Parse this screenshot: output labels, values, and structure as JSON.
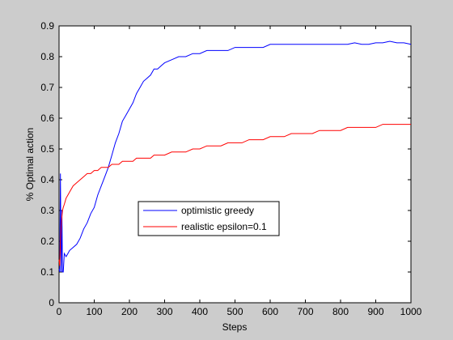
{
  "chart_data": {
    "type": "line",
    "title": "",
    "xlabel": "Steps",
    "ylabel": "% Optimal action",
    "xlim": [
      0,
      1000
    ],
    "ylim": [
      0,
      0.9
    ],
    "x_ticks": [
      0,
      100,
      200,
      300,
      400,
      500,
      600,
      700,
      800,
      900,
      1000
    ],
    "x_tick_labels": [
      "0",
      "100",
      "200",
      "300",
      "400",
      "500",
      "600",
      "700",
      "800",
      "900",
      "1000"
    ],
    "y_ticks": [
      0,
      0.1,
      0.2,
      0.3,
      0.4,
      0.5,
      0.6,
      0.7,
      0.8,
      0.9
    ],
    "y_tick_labels": [
      "0",
      "0.1",
      "0.2",
      "0.3",
      "0.4",
      "0.5",
      "0.6",
      "0.7",
      "0.8",
      "0.9"
    ],
    "grid": false,
    "legend_placement": "center-left",
    "series": [
      {
        "name": "optimistic greedy",
        "color": "#0000ff",
        "x": [
          0,
          2,
          4,
          6,
          8,
          10,
          12,
          15,
          20,
          25,
          30,
          40,
          50,
          60,
          70,
          80,
          90,
          100,
          110,
          120,
          130,
          140,
          150,
          160,
          170,
          180,
          190,
          200,
          210,
          220,
          230,
          240,
          250,
          260,
          270,
          280,
          290,
          300,
          320,
          340,
          360,
          380,
          400,
          420,
          440,
          460,
          480,
          500,
          520,
          540,
          560,
          580,
          600,
          620,
          640,
          660,
          680,
          700,
          720,
          740,
          760,
          780,
          800,
          820,
          840,
          860,
          880,
          900,
          920,
          940,
          960,
          980,
          1000
        ],
        "y": [
          0.11,
          0.1,
          0.42,
          0.1,
          0.3,
          0.1,
          0.1,
          0.16,
          0.15,
          0.16,
          0.17,
          0.18,
          0.19,
          0.21,
          0.24,
          0.26,
          0.29,
          0.31,
          0.35,
          0.38,
          0.41,
          0.44,
          0.48,
          0.52,
          0.55,
          0.59,
          0.61,
          0.63,
          0.65,
          0.68,
          0.7,
          0.72,
          0.73,
          0.74,
          0.76,
          0.76,
          0.77,
          0.78,
          0.79,
          0.8,
          0.8,
          0.81,
          0.81,
          0.82,
          0.82,
          0.82,
          0.82,
          0.83,
          0.83,
          0.83,
          0.83,
          0.83,
          0.84,
          0.84,
          0.84,
          0.84,
          0.84,
          0.84,
          0.84,
          0.84,
          0.84,
          0.84,
          0.84,
          0.84,
          0.845,
          0.84,
          0.84,
          0.845,
          0.845,
          0.85,
          0.845,
          0.845,
          0.84
        ]
      },
      {
        "name": "realistic epsilon=0.1",
        "color": "#ff0000",
        "x": [
          0,
          2,
          4,
          6,
          8,
          10,
          12,
          15,
          20,
          25,
          30,
          40,
          50,
          60,
          70,
          80,
          90,
          100,
          110,
          120,
          130,
          140,
          150,
          160,
          170,
          180,
          190,
          200,
          210,
          220,
          230,
          240,
          250,
          260,
          270,
          280,
          290,
          300,
          320,
          340,
          360,
          380,
          400,
          420,
          440,
          460,
          480,
          500,
          520,
          540,
          560,
          580,
          600,
          620,
          640,
          660,
          680,
          700,
          720,
          740,
          760,
          780,
          800,
          820,
          840,
          860,
          880,
          900,
          920,
          940,
          960,
          980,
          1000
        ],
        "y": [
          0.14,
          0.12,
          0.2,
          0.25,
          0.28,
          0.3,
          0.31,
          0.32,
          0.34,
          0.35,
          0.36,
          0.38,
          0.39,
          0.4,
          0.41,
          0.42,
          0.42,
          0.43,
          0.43,
          0.44,
          0.44,
          0.44,
          0.45,
          0.45,
          0.45,
          0.46,
          0.46,
          0.46,
          0.46,
          0.47,
          0.47,
          0.47,
          0.47,
          0.47,
          0.48,
          0.48,
          0.48,
          0.48,
          0.49,
          0.49,
          0.49,
          0.5,
          0.5,
          0.51,
          0.51,
          0.51,
          0.52,
          0.52,
          0.52,
          0.53,
          0.53,
          0.53,
          0.54,
          0.54,
          0.54,
          0.55,
          0.55,
          0.55,
          0.55,
          0.56,
          0.56,
          0.56,
          0.56,
          0.57,
          0.57,
          0.57,
          0.57,
          0.57,
          0.58,
          0.58,
          0.58,
          0.58,
          0.58
        ]
      }
    ]
  }
}
